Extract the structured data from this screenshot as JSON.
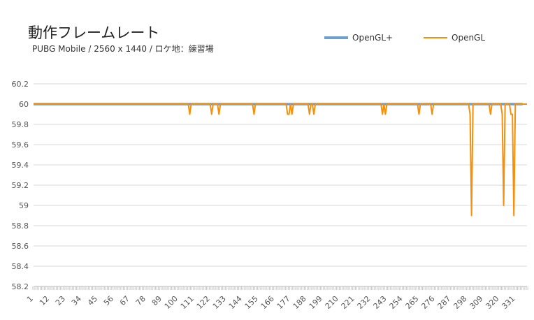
{
  "chart_data": {
    "type": "line",
    "title": "動作フレームレート",
    "subtitle": "PUBG Mobile / 2560 x 1440 /  ロケ地：練習場",
    "xlabel": "",
    "ylabel": "",
    "ylim": [
      58.2,
      60.2
    ],
    "yticks": [
      "60.2",
      "60",
      "59.8",
      "59.6",
      "59.4",
      "59.2",
      "59",
      "58.8",
      "58.6",
      "58.4",
      "58.2"
    ],
    "x_range": [
      1,
      339
    ],
    "xtick_labels": [
      "1",
      "12",
      "23",
      "34",
      "45",
      "56",
      "67",
      "78",
      "89",
      "100",
      "111",
      "122",
      "133",
      "144",
      "155",
      "166",
      "177",
      "188",
      "199",
      "210",
      "221",
      "232",
      "243",
      "254",
      "265",
      "276",
      "287",
      "298",
      "309",
      "320",
      "331"
    ],
    "grid": true,
    "legend_position": "top-right",
    "series": [
      {
        "name": "OpenGL+",
        "color": "#6e9fd1",
        "baseline": 60,
        "last_x": 336,
        "dips": []
      },
      {
        "name": "OpenGL",
        "color": "#f4900c",
        "baseline": 60,
        "last_x": 339,
        "dips": [
          [
            108,
            59.9
          ],
          [
            123,
            59.9
          ],
          [
            128,
            59.9
          ],
          [
            152,
            59.9
          ],
          [
            175,
            59.9
          ],
          [
            176,
            59.9
          ],
          [
            178,
            59.9
          ],
          [
            190,
            59.9
          ],
          [
            193,
            59.9
          ],
          [
            240,
            59.9
          ],
          [
            242,
            59.9
          ],
          [
            265,
            59.9
          ],
          [
            274,
            59.9
          ],
          [
            300,
            59.9
          ],
          [
            301,
            58.9
          ],
          [
            314,
            59.9
          ],
          [
            322,
            59.9
          ],
          [
            323,
            59.0
          ],
          [
            328,
            59.9
          ],
          [
            329,
            59.9
          ],
          [
            330,
            58.9
          ]
        ]
      }
    ]
  }
}
